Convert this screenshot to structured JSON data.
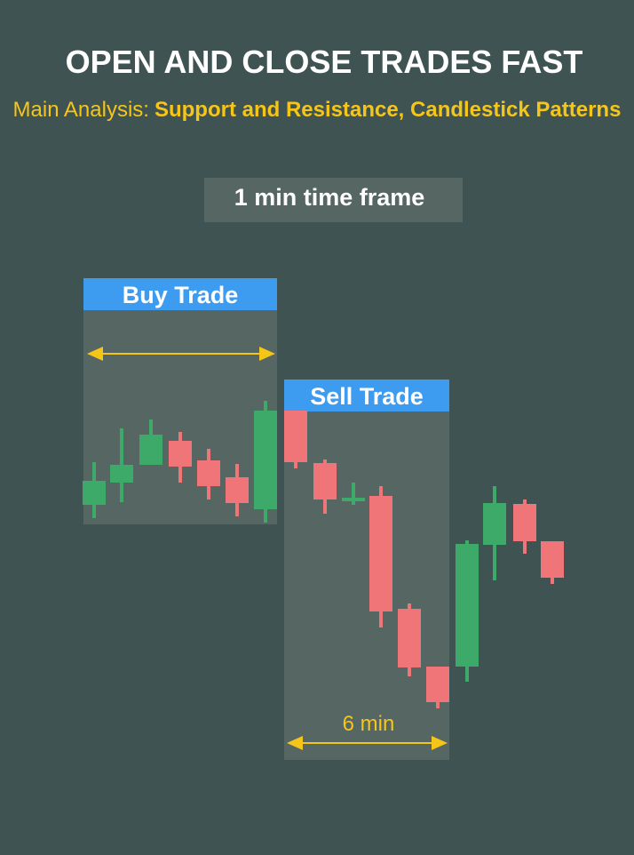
{
  "header": {
    "title": "OPEN AND CLOSE  TRADES FAST",
    "subtitle_prefix": "Main Analysis:",
    "subtitle_highlight": "Support and Resistance, Candlestick Patterns",
    "badge": "1 min time frame"
  },
  "panels": [
    {
      "label": "Buy Trade"
    },
    {
      "label": "Sell Trade",
      "duration": "6 min"
    }
  ]
}
